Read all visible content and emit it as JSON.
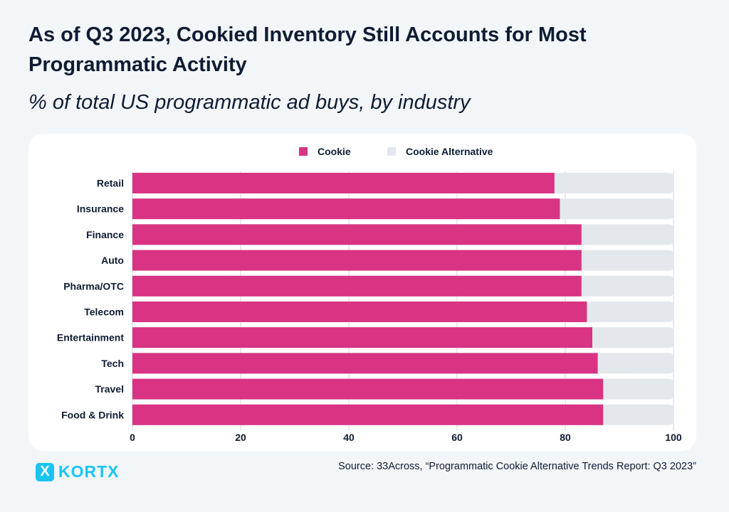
{
  "title": "As of Q3 2023, Cookied Inventory Still Accounts for Most Programmatic Activity",
  "subtitle": "% of total US programmatic ad buys, by industry",
  "source": "Source: 33Across, “Programmatic Cookie Alternative Trends Report: Q3 2023”",
  "logo": "KORTX",
  "chart_data": {
    "type": "bar",
    "orientation": "horizontal",
    "stacked": true,
    "categories": [
      "Retail",
      "Insurance",
      "Finance",
      "Auto",
      "Pharma/OTC",
      "Telecom",
      "Entertainment",
      "Tech",
      "Travel",
      "Food & Drink"
    ],
    "series": [
      {
        "name": "Cookie",
        "color": "#d93384",
        "values": [
          78,
          79,
          83,
          83,
          83,
          84,
          85,
          86,
          87,
          87
        ]
      },
      {
        "name": "Cookie Alternative",
        "color": "#e4e8ec",
        "values": [
          22,
          21,
          17,
          17,
          17,
          16,
          15,
          14,
          13,
          13
        ]
      }
    ],
    "xlim": [
      0,
      100
    ],
    "xticks": [
      "0",
      "20",
      "40",
      "60",
      "80",
      "100"
    ],
    "legend": "top-center",
    "grid": true
  }
}
